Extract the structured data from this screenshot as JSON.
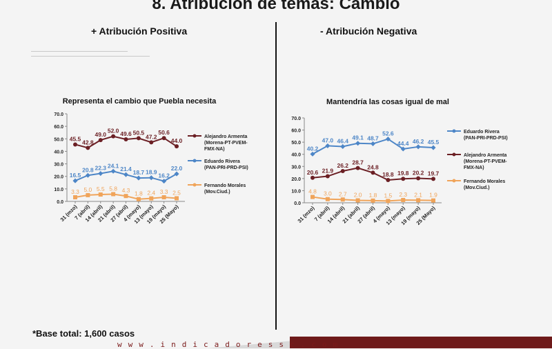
{
  "slide_title": "8. Atribución de temas: Cambio",
  "left_heading": "+ Atribución Positiva",
  "right_heading": "- Atribución Negativa",
  "footer_note": "*Base total: 1,600 casos",
  "website": "www.indicadoressc.com",
  "colors": {
    "maroon": "#6b1f24",
    "blue": "#4d86c7",
    "orange": "#f0a45a",
    "axis": "#888888"
  },
  "chart_data": [
    {
      "type": "line",
      "title": "Representa el cambio que Puebla necesita",
      "categories": [
        "31 (mzo)",
        "7 (abril)",
        "14 (abril)",
        "21 (abril)",
        "27 (abril)",
        "4 (mayo)",
        "13 (mayo)",
        "19 (mayo)",
        "25 (Mayo)"
      ],
      "ylim": [
        0,
        70
      ],
      "yticks": [
        "0.0",
        "10.0",
        "20.0",
        "30.0",
        "40.0",
        "50.0",
        "60.0",
        "70.0"
      ],
      "legend_position": "right",
      "series": [
        {
          "name": "Alejandro Armenta (Morena-PT-PVEM-FMX-NA)",
          "values": [
            45.5,
            42.8,
            49.0,
            52.0,
            49.6,
            50.5,
            47.2,
            50.6,
            44.0
          ],
          "labels": [
            "45.5",
            "42.8",
            "49.0",
            "52.0",
            "49.6",
            "50.5",
            "47.2",
            "50.6",
            "44.0"
          ]
        },
        {
          "name": "Eduardo Rivera (PAN-PRI-PRD-PSI)",
          "values": [
            16.5,
            20.8,
            22.3,
            24.1,
            21.4,
            18.7,
            18.9,
            16.2,
            22.0
          ],
          "labels": [
            "16.5",
            "20.8",
            "22.3",
            "24.1",
            "21.4",
            "18.7",
            "18.9",
            "16.2",
            "22.0"
          ]
        },
        {
          "name": "Fernando Morales (Mov.Ciud.)",
          "values": [
            3.3,
            5.0,
            5.5,
            5.8,
            4.3,
            1.8,
            2.4,
            3.3,
            2.5
          ],
          "labels": [
            "3.3",
            "5.0",
            "5.5",
            "5.8",
            "4.3",
            "1.8",
            "2.4",
            "3.3",
            "2.5"
          ]
        }
      ]
    },
    {
      "type": "line",
      "title": "Mantendría las cosas igual de mal",
      "categories": [
        "31 (mzo)",
        "7 (abril)",
        "14 (abril)",
        "21 (abril)",
        "27 (abril)",
        "4 (mayo)",
        "13 (mayo)",
        "19 (mayo)",
        "25 (Mayo)"
      ],
      "ylim": [
        0,
        70
      ],
      "yticks": [
        "0.0",
        "10.0",
        "20.0",
        "30.0",
        "40.0",
        "50.0",
        "60.0",
        "70.0"
      ],
      "legend_position": "right",
      "series": [
        {
          "name": "Eduardo Rivera (PAN-PRI-PRD-PSI)",
          "values": [
            40.2,
            47.0,
            46.4,
            49.1,
            48.7,
            52.6,
            44.4,
            46.2,
            45.5
          ],
          "labels": [
            "40.2",
            "47.0",
            "46.4",
            "49.1",
            "48.7",
            "52.6",
            "44.4",
            "46.2",
            "45.5"
          ]
        },
        {
          "name": "Alejandro Armenta (Morena-PT-PVEM-FMX-NA)",
          "values": [
            20.6,
            21.9,
            26.2,
            28.7,
            24.8,
            18.8,
            19.8,
            20.2,
            19.7
          ],
          "labels": [
            "20.6",
            "21.9",
            "26.2",
            "28.7",
            "24.8",
            "18.8",
            "19.8",
            "20.2",
            "19.7"
          ]
        },
        {
          "name": "Fernando Morales (Mov.Ciud.)",
          "values": [
            4.8,
            3.0,
            2.7,
            2.0,
            1.8,
            1.5,
            2.3,
            2.1,
            1.9
          ],
          "labels": [
            "4.8",
            "3.0",
            "2.7",
            "2.0",
            "1.8",
            "1.5",
            "2.3",
            "2.1",
            "1.9"
          ]
        }
      ]
    }
  ]
}
